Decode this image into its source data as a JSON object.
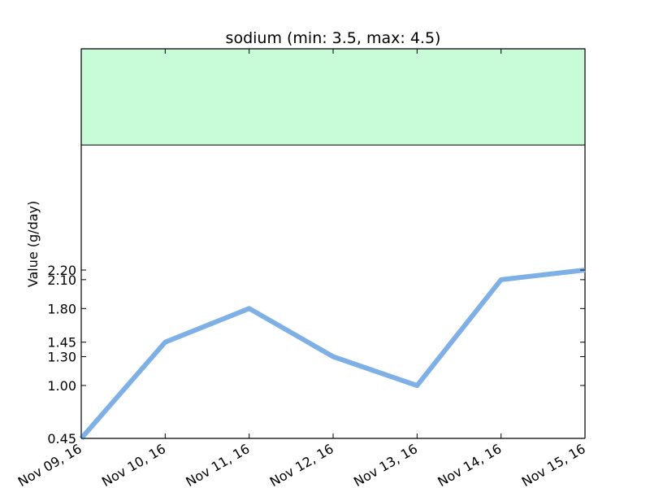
{
  "chart_data": {
    "type": "line",
    "title": "sodium (min: 3.5, max: 4.5)",
    "xlabel": "",
    "ylabel": "Value (g/day)",
    "categories": [
      "Nov 09, 16",
      "Nov 10, 16",
      "Nov 11, 16",
      "Nov 12, 16",
      "Nov 13, 16",
      "Nov 14, 16",
      "Nov 15, 16"
    ],
    "series": [
      {
        "values": [
          0.45,
          1.45,
          1.8,
          1.3,
          1.0,
          2.1,
          2.2
        ]
      }
    ],
    "y_ticks": [
      "0.45",
      "1.00",
      "1.30",
      "1.45",
      "1.80",
      "2.10",
      "2.20"
    ],
    "target_range": {
      "min": 3.5,
      "max": 4.5
    },
    "ylim": [
      0.45,
      4.5
    ],
    "grid": false,
    "colors": {
      "line": "#7eb0e6",
      "target_band": "#c8fcd9"
    }
  }
}
